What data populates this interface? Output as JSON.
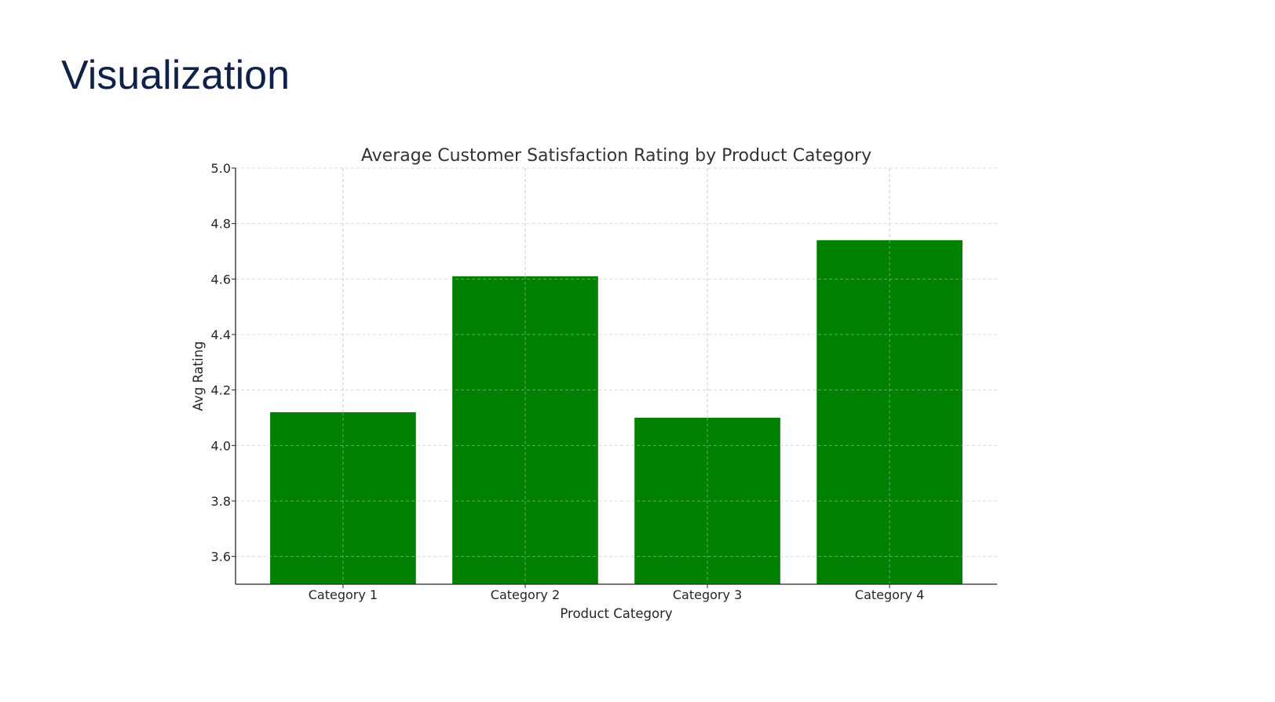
{
  "page": {
    "title": "Visualization"
  },
  "chart_data": {
    "type": "bar",
    "title": "Average Customer Satisfaction Rating by Product Category",
    "xlabel": "Product Category",
    "ylabel": "Avg Rating",
    "categories": [
      "Category 1",
      "Category 2",
      "Category 3",
      "Category 4"
    ],
    "values": [
      4.12,
      4.61,
      4.1,
      4.74
    ],
    "ylim": [
      3.5,
      5.0
    ],
    "yticks": [
      "3.6",
      "3.8",
      "4.0",
      "4.2",
      "4.4",
      "4.6",
      "4.8",
      "5.0"
    ],
    "grid": true,
    "bar_color": "#008000"
  }
}
